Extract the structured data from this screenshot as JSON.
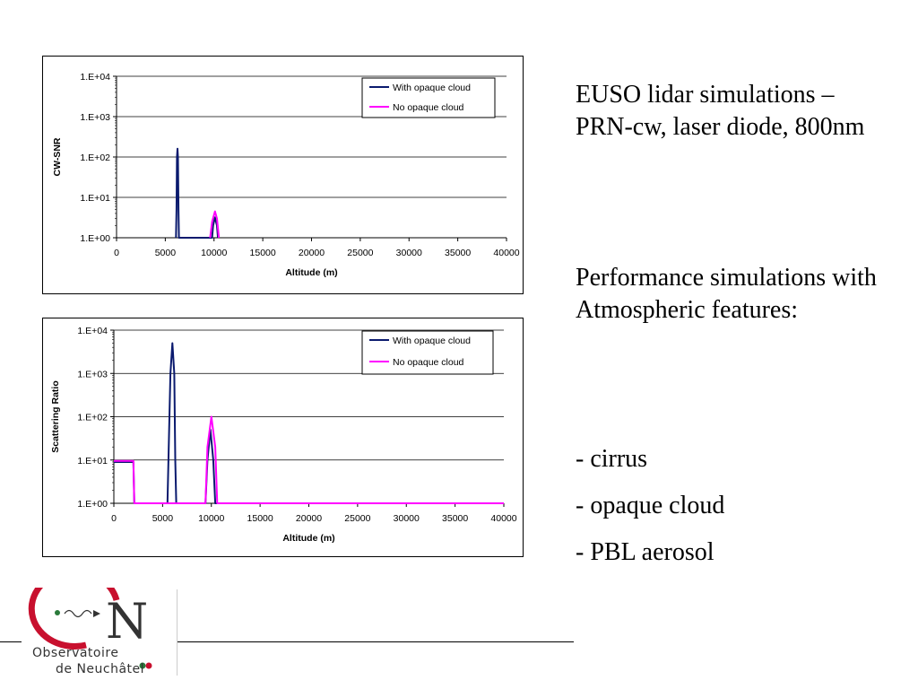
{
  "chart_data": [
    {
      "type": "line",
      "ylabel": "CW-SNR",
      "xlabel": "Altitude (m)",
      "y_scale": "log",
      "ylim": [
        1,
        10000
      ],
      "xlim": [
        0,
        40000
      ],
      "y_tick_labels": [
        "1.E+00",
        "1.E+01",
        "1.E+02",
        "1.E+03",
        "1.E+04"
      ],
      "x_tick_labels": [
        "0",
        "5000",
        "10000",
        "15000",
        "20000",
        "25000",
        "30000",
        "35000",
        "40000"
      ],
      "grid": "horizontal",
      "legend_position": "top-right",
      "series": [
        {
          "name": "With opaque cloud",
          "color": "#0a1a6e",
          "points": [
            [
              6100,
              1
            ],
            [
              6150,
              5
            ],
            [
              6200,
              100
            ],
            [
              6250,
              160
            ],
            [
              6300,
              100
            ],
            [
              6350,
              5
            ],
            [
              6400,
              1
            ],
            [
              9800,
              1
            ],
            [
              9900,
              2
            ],
            [
              10100,
              3.2
            ],
            [
              10300,
              2
            ],
            [
              10400,
              1
            ]
          ]
        },
        {
          "name": "No opaque cloud",
          "color": "#ff00ff",
          "points": [
            [
              9600,
              1
            ],
            [
              9800,
              2.5
            ],
            [
              10100,
              4.5
            ],
            [
              10300,
              3
            ],
            [
              10500,
              1
            ]
          ]
        }
      ]
    },
    {
      "type": "line",
      "ylabel": "Scattering Ratio",
      "xlabel": "Altitude (m)",
      "y_scale": "log",
      "ylim": [
        1,
        10000
      ],
      "xlim": [
        0,
        40000
      ],
      "y_tick_labels": [
        "1.E+00",
        "1.E+01",
        "1.E+02",
        "1.E+03",
        "1.E+04"
      ],
      "x_tick_labels": [
        "0",
        "5000",
        "10000",
        "15000",
        "20000",
        "25000",
        "30000",
        "35000",
        "40000"
      ],
      "grid": "horizontal",
      "legend_position": "top-right",
      "series": [
        {
          "name": "With opaque cloud",
          "color": "#0a1a6e",
          "points": [
            [
              0,
              9
            ],
            [
              2000,
              9
            ],
            [
              2100,
              1
            ],
            [
              5500,
              1
            ],
            [
              5600,
              10
            ],
            [
              5800,
              1000
            ],
            [
              6000,
              5000
            ],
            [
              6200,
              1000
            ],
            [
              6300,
              10
            ],
            [
              6400,
              1
            ],
            [
              9400,
              1
            ],
            [
              9600,
              10
            ],
            [
              9900,
              50
            ],
            [
              10200,
              10
            ],
            [
              10400,
              1
            ],
            [
              40000,
              1
            ]
          ]
        },
        {
          "name": "No opaque cloud",
          "color": "#ff00ff",
          "points": [
            [
              0,
              9.5
            ],
            [
              2000,
              9.5
            ],
            [
              2100,
              1
            ],
            [
              9400,
              1
            ],
            [
              9600,
              20
            ],
            [
              10000,
              100
            ],
            [
              10400,
              20
            ],
            [
              10600,
              1
            ],
            [
              40000,
              1
            ]
          ]
        }
      ]
    }
  ],
  "text": {
    "intro": "EUSO lidar simulations – PRN-cw, laser diode, 800nm",
    "performance": "Performance simulations with Atmospheric features:",
    "features": [
      "- cirrus",
      "- opaque cloud",
      "- PBL aerosol"
    ]
  },
  "logo": {
    "line1": "Observatoire",
    "line2": "de Neuchâtel",
    "letter": "N"
  }
}
